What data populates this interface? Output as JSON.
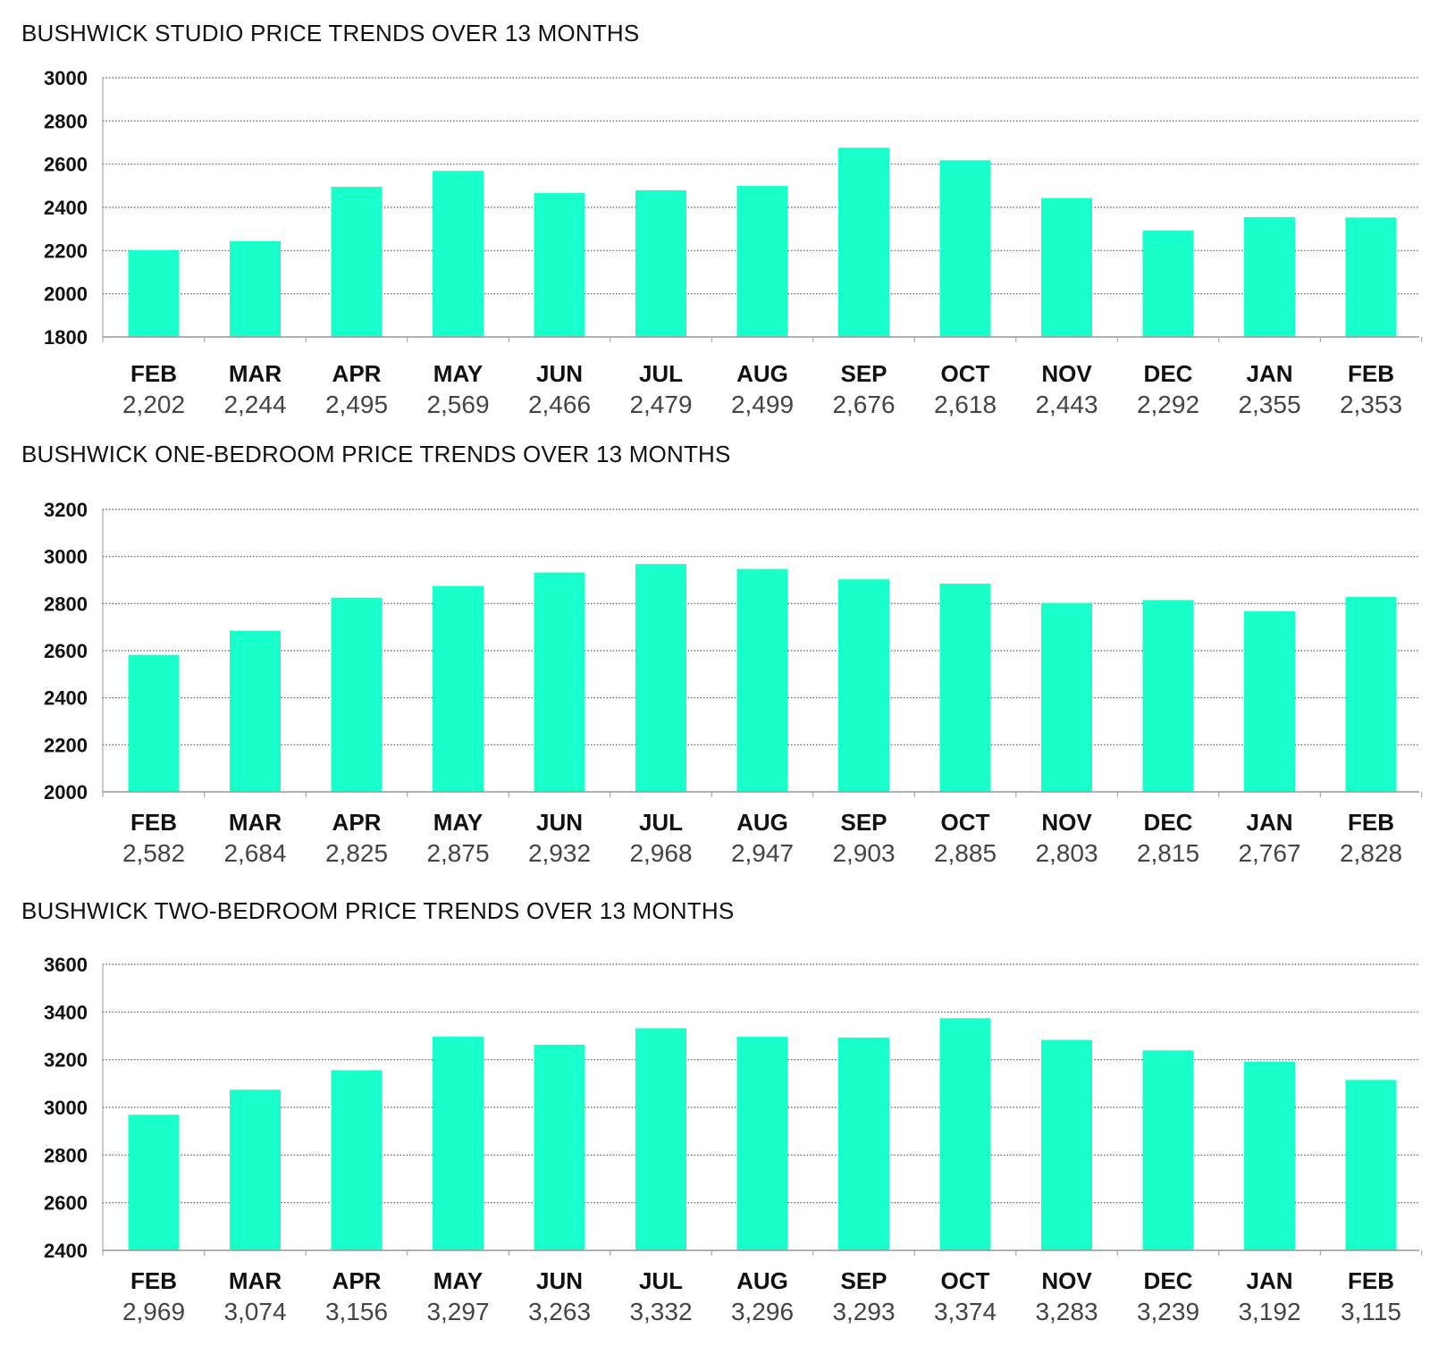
{
  "colors": {
    "bar": "#18ffcc",
    "grid": "#555555",
    "axis": "#999999",
    "text": "#111111",
    "value_text": "#444444"
  },
  "chart_data": [
    {
      "type": "bar",
      "title": "BUSHWICK STUDIO PRICE TRENDS OVER 13 MONTHS",
      "categories": [
        "FEB",
        "MAR",
        "APR",
        "MAY",
        "JUN",
        "JUL",
        "AUG",
        "SEP",
        "OCT",
        "NOV",
        "DEC",
        "JAN",
        "FEB"
      ],
      "values": [
        2202,
        2244,
        2495,
        2569,
        2466,
        2479,
        2499,
        2676,
        2618,
        2443,
        2292,
        2355,
        2353
      ],
      "value_labels": [
        "2,202",
        "2,244",
        "2,495",
        "2,569",
        "2,466",
        "2,479",
        "2,499",
        "2,676",
        "2,618",
        "2,443",
        "2,292",
        "2,355",
        "2,353"
      ],
      "ylim": [
        1800,
        3000
      ],
      "yticks": [
        1800,
        2000,
        2200,
        2400,
        2600,
        2800,
        3000
      ],
      "xlabel": "",
      "ylabel": "",
      "grid": true
    },
    {
      "type": "bar",
      "title": "BUSHWICK ONE-BEDROOM PRICE TRENDS OVER 13 MONTHS",
      "categories": [
        "FEB",
        "MAR",
        "APR",
        "MAY",
        "JUN",
        "JUL",
        "AUG",
        "SEP",
        "OCT",
        "NOV",
        "DEC",
        "JAN",
        "FEB"
      ],
      "values": [
        2582,
        2684,
        2825,
        2875,
        2932,
        2968,
        2947,
        2903,
        2885,
        2803,
        2815,
        2767,
        2828
      ],
      "value_labels": [
        "2,582",
        "2,684",
        "2,825",
        "2,875",
        "2,932",
        "2,968",
        "2,947",
        "2,903",
        "2,885",
        "2,803",
        "2,815",
        "2,767",
        "2,828"
      ],
      "ylim": [
        2000,
        3200
      ],
      "yticks": [
        2000,
        2200,
        2400,
        2600,
        2800,
        3000,
        3200
      ],
      "xlabel": "",
      "ylabel": "",
      "grid": true
    },
    {
      "type": "bar",
      "title": "BUSHWICK TWO-BEDROOM PRICE TRENDS OVER 13 MONTHS",
      "categories": [
        "FEB",
        "MAR",
        "APR",
        "MAY",
        "JUN",
        "JUL",
        "AUG",
        "SEP",
        "OCT",
        "NOV",
        "DEC",
        "JAN",
        "FEB"
      ],
      "values": [
        2969,
        3074,
        3156,
        3297,
        3263,
        3332,
        3296,
        3293,
        3374,
        3283,
        3239,
        3192,
        3115
      ],
      "value_labels": [
        "2,969",
        "3,074",
        "3,156",
        "3,297",
        "3,263",
        "3,332",
        "3,296",
        "3,293",
        "3,374",
        "3,283",
        "3,239",
        "3,192",
        "3,115"
      ],
      "ylim": [
        2400,
        3600
      ],
      "yticks": [
        2400,
        2600,
        2800,
        3000,
        3200,
        3400,
        3600
      ],
      "xlabel": "",
      "ylabel": "",
      "grid": true
    }
  ]
}
